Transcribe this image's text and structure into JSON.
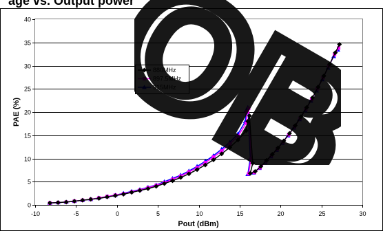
{
  "header": {
    "title": "age vs. Output power"
  },
  "watermark": {
    "text": "OB"
  },
  "chart_data": {
    "type": "line",
    "title": "",
    "xlabel": "Pout (dBm)",
    "ylabel": "PAE (%)",
    "xlim": [
      -10,
      30
    ],
    "ylim": [
      0,
      40
    ],
    "xticks": [
      -10,
      -5,
      0,
      5,
      10,
      15,
      20,
      25,
      30
    ],
    "yticks": [
      0,
      5,
      10,
      15,
      20,
      25,
      30,
      35,
      40
    ],
    "grid": "horizontal",
    "legend_position": "center-left",
    "series": [
      {
        "name": "880MHz",
        "color": "#000000",
        "marker": "diamond",
        "points": [
          [
            -8.2,
            0.4
          ],
          [
            -7.2,
            0.5
          ],
          [
            -6.2,
            0.6
          ],
          [
            -5.2,
            0.8
          ],
          [
            -4.2,
            1.0
          ],
          [
            -3.2,
            1.2
          ],
          [
            -2.2,
            1.4
          ],
          [
            -1.2,
            1.7
          ],
          [
            -0.2,
            2.0
          ],
          [
            0.8,
            2.3
          ],
          [
            1.8,
            2.7
          ],
          [
            2.8,
            3.1
          ],
          [
            3.8,
            3.5
          ],
          [
            4.8,
            4.0
          ],
          [
            5.8,
            4.6
          ],
          [
            6.8,
            5.2
          ],
          [
            7.8,
            5.9
          ],
          [
            8.8,
            6.7
          ],
          [
            9.8,
            7.6
          ],
          [
            10.8,
            8.6
          ],
          [
            11.8,
            9.7
          ],
          [
            12.8,
            11.0
          ],
          [
            13.8,
            12.4
          ],
          [
            14.8,
            14.0
          ],
          [
            15.8,
            16.0
          ],
          [
            16.0,
            18.0
          ],
          [
            16.2,
            19.2
          ],
          [
            16.6,
            9.0
          ],
          [
            16.3,
            6.8
          ],
          [
            16.9,
            7.2
          ],
          [
            17.6,
            8.3
          ],
          [
            18.3,
            9.6
          ],
          [
            19.0,
            10.9
          ],
          [
            19.7,
            12.3
          ],
          [
            20.4,
            13.8
          ],
          [
            21.1,
            15.4
          ],
          [
            21.8,
            17.1
          ],
          [
            22.5,
            19.0
          ],
          [
            23.2,
            21.0
          ],
          [
            23.9,
            23.1
          ],
          [
            24.6,
            25.4
          ],
          [
            25.3,
            27.8
          ],
          [
            26.0,
            30.3
          ],
          [
            26.7,
            32.8
          ],
          [
            27.2,
            34.6
          ]
        ]
      },
      {
        "name": "897.5MHz",
        "color": "#ff00ff",
        "marker": "square",
        "points": [
          [
            -8.2,
            0.4
          ],
          [
            -7.2,
            0.5
          ],
          [
            -6.2,
            0.6
          ],
          [
            -5.2,
            0.8
          ],
          [
            -4.2,
            1.0
          ],
          [
            -3.2,
            1.2
          ],
          [
            -2.2,
            1.5
          ],
          [
            -1.2,
            1.8
          ],
          [
            -0.2,
            2.1
          ],
          [
            0.8,
            2.4
          ],
          [
            1.8,
            2.8
          ],
          [
            2.8,
            3.2
          ],
          [
            3.8,
            3.7
          ],
          [
            4.8,
            4.2
          ],
          [
            5.8,
            4.8
          ],
          [
            6.8,
            5.5
          ],
          [
            7.8,
            6.2
          ],
          [
            8.8,
            7.1
          ],
          [
            9.8,
            8.0
          ],
          [
            10.8,
            9.1
          ],
          [
            11.8,
            10.3
          ],
          [
            12.8,
            11.6
          ],
          [
            13.8,
            13.1
          ],
          [
            14.8,
            14.8
          ],
          [
            15.8,
            17.6
          ],
          [
            15.9,
            20.0
          ],
          [
            16.1,
            20.8
          ],
          [
            16.4,
            10.0
          ],
          [
            16.1,
            6.7
          ],
          [
            16.8,
            7.0
          ],
          [
            17.5,
            8.0
          ],
          [
            18.2,
            9.3
          ],
          [
            18.9,
            10.6
          ],
          [
            19.6,
            12.0
          ],
          [
            20.3,
            13.5
          ],
          [
            21.0,
            15.1
          ],
          [
            21.7,
            16.8
          ],
          [
            22.4,
            18.6
          ],
          [
            23.1,
            20.6
          ],
          [
            23.8,
            22.7
          ],
          [
            24.5,
            25.0
          ],
          [
            25.2,
            27.4
          ],
          [
            25.9,
            29.9
          ],
          [
            26.6,
            32.4
          ],
          [
            27.1,
            33.8
          ]
        ]
      },
      {
        "name": "915MHz",
        "color": "#0000ff",
        "marker": "triangle",
        "points": [
          [
            -8.2,
            0.4
          ],
          [
            -7.2,
            0.5
          ],
          [
            -6.2,
            0.6
          ],
          [
            -5.2,
            0.8
          ],
          [
            -4.2,
            1.0
          ],
          [
            -3.2,
            1.2
          ],
          [
            -2.2,
            1.5
          ],
          [
            -1.2,
            1.8
          ],
          [
            -0.2,
            2.1
          ],
          [
            0.8,
            2.5
          ],
          [
            1.8,
            2.9
          ],
          [
            2.8,
            3.3
          ],
          [
            3.8,
            3.8
          ],
          [
            4.8,
            4.3
          ],
          [
            5.8,
            5.0
          ],
          [
            6.8,
            5.7
          ],
          [
            7.8,
            6.4
          ],
          [
            8.8,
            7.3
          ],
          [
            9.8,
            8.3
          ],
          [
            10.8,
            9.4
          ],
          [
            11.8,
            10.6
          ],
          [
            12.8,
            12.0
          ],
          [
            13.8,
            13.5
          ],
          [
            14.8,
            15.3
          ],
          [
            15.7,
            18.0
          ],
          [
            15.8,
            20.3
          ],
          [
            16.0,
            21.0
          ],
          [
            16.3,
            10.0
          ],
          [
            16.0,
            6.6
          ],
          [
            16.7,
            6.9
          ],
          [
            17.4,
            7.9
          ],
          [
            18.1,
            9.1
          ],
          [
            18.8,
            10.4
          ],
          [
            19.5,
            11.8
          ],
          [
            20.2,
            13.3
          ],
          [
            20.9,
            14.9
          ],
          [
            21.6,
            16.6
          ],
          [
            22.3,
            18.4
          ],
          [
            23.0,
            20.3
          ],
          [
            23.7,
            22.4
          ],
          [
            24.4,
            24.6
          ],
          [
            25.1,
            27.0
          ],
          [
            25.8,
            29.5
          ],
          [
            26.5,
            32.0
          ],
          [
            27.0,
            33.4
          ]
        ]
      }
    ]
  }
}
